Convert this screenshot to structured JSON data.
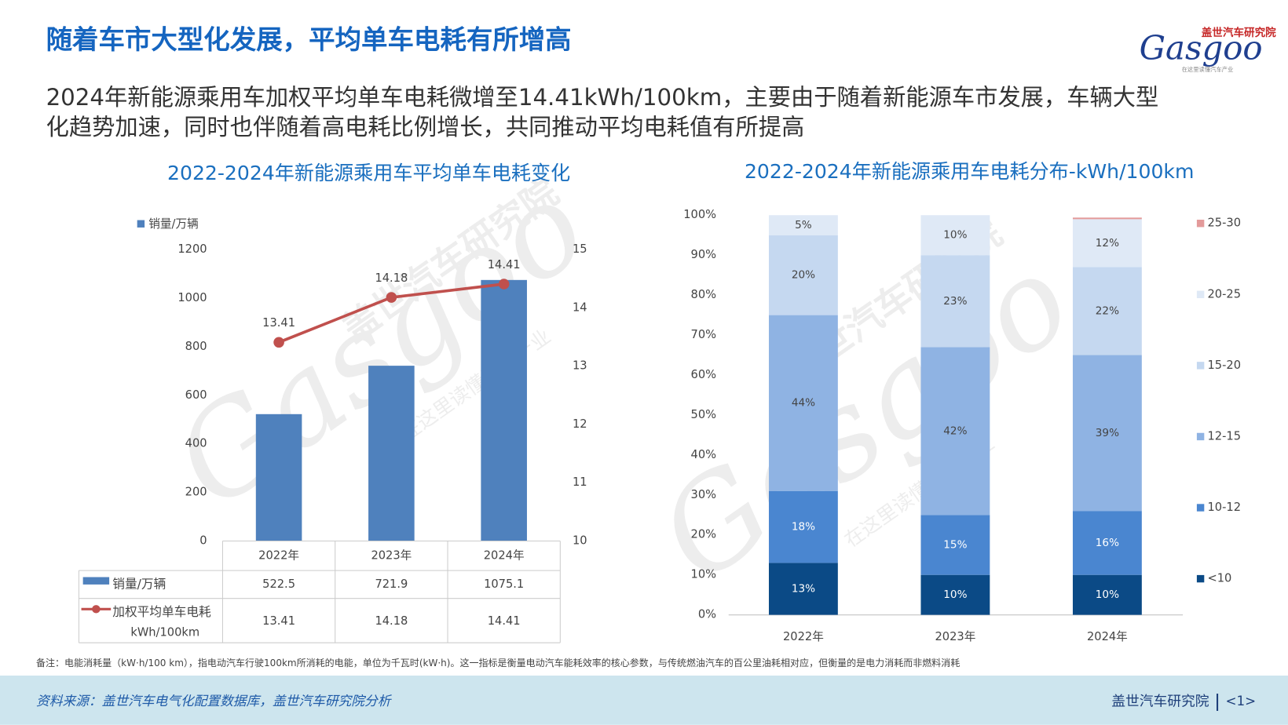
{
  "header": {
    "title": "随着车市大型化发展，平均单车电耗有所增高",
    "subtitle": [
      "2024年新能源乘用车加权平均单车电耗微增至14.41kWh/100km，主要由于随着新能源车市发展，车辆大型",
      "化趋势加速，同时也伴随着高电耗比例增长，共同推动平均电耗值有所提高"
    ]
  },
  "logo": {
    "brand": "Gasgoo",
    "name": "盖世汽车研究院",
    "slogan": "在这里读懂汽车产业"
  },
  "chart_data": [
    {
      "type": "combo",
      "title": "2022-2024年新能源乘用车平均单车电耗变化",
      "categories": [
        "2022年",
        "2023年",
        "2024年"
      ],
      "series": [
        {
          "name": "销量/万辆",
          "type": "bar",
          "color": "#4f81bd",
          "values": [
            522.5,
            721.9,
            1075.1
          ]
        },
        {
          "name": "加权平均单车电耗",
          "unit": "kWh/100km",
          "type": "line",
          "axis": "y2",
          "color": "#c0504d",
          "values": [
            13.41,
            14.18,
            14.41
          ]
        }
      ],
      "ylim": [
        0,
        1200
      ],
      "yticks": [
        0,
        200,
        400,
        600,
        800,
        1000,
        1200
      ],
      "y2lim": [
        10,
        15
      ],
      "y2ticks": [
        10,
        11,
        12,
        13,
        14,
        15
      ],
      "data_table": true
    },
    {
      "type": "stacked_bar",
      "title": "2022-2024年新能源乘用车电耗分布-kWh/100km",
      "categories": [
        "2022年",
        "2023年",
        "2024年"
      ],
      "series": [
        {
          "name": "<10",
          "color": "#0b4a86",
          "values": [
            13,
            10,
            10
          ],
          "value_labels": [
            "13%",
            "10%",
            "10%"
          ]
        },
        {
          "name": "10-12",
          "color": "#4a86d0",
          "values": [
            18,
            15,
            16
          ],
          "value_labels": [
            "18%",
            "15%",
            "16%"
          ]
        },
        {
          "name": "12-15",
          "color": "#8fb3e3",
          "values": [
            44,
            42,
            39
          ],
          "value_labels": [
            "44%",
            "42%",
            "39%"
          ]
        },
        {
          "name": "15-20",
          "color": "#c5d8f0",
          "values": [
            20,
            23,
            22
          ],
          "value_labels": [
            "20%",
            "23%",
            "22%"
          ]
        },
        {
          "name": "20-25",
          "color": "#dfe9f6",
          "values": [
            5,
            10,
            12
          ],
          "value_labels": [
            "5%",
            "10%",
            "12%"
          ]
        },
        {
          "name": "25-30",
          "color": "#e39a9a",
          "values": [
            0,
            0,
            0.4
          ]
        }
      ],
      "ylim": [
        0,
        100
      ],
      "yticks": [
        {
          "value": 0,
          "label": "0%"
        },
        {
          "value": 10,
          "label": "10%"
        },
        {
          "value": 20,
          "label": "20%"
        },
        {
          "value": 30,
          "label": "30%"
        },
        {
          "value": 40,
          "label": "40%"
        },
        {
          "value": 50,
          "label": "50%"
        },
        {
          "value": 60,
          "label": "60%"
        },
        {
          "value": 70,
          "label": "70%"
        },
        {
          "value": 80,
          "label": "80%"
        },
        {
          "value": 90,
          "label": "90%"
        },
        {
          "value": 100,
          "label": "100%"
        }
      ],
      "legend": "right"
    }
  ],
  "footnote": "备注：电能消耗量（kW·h/100 km），指电动汽车行驶100km所消耗的电能，单位为千瓦时(kW·h)。这一指标是衡量电动汽车能耗效率的核心参数，与传统燃油汽车的百公里油耗相对应，但衡量的是电力消耗而非燃料消耗",
  "footer": {
    "source": "资料来源：盖世汽车电气化配置数据库，盖世汽车研究院分析",
    "org": "盖世汽车研究院",
    "page": "<1>"
  }
}
